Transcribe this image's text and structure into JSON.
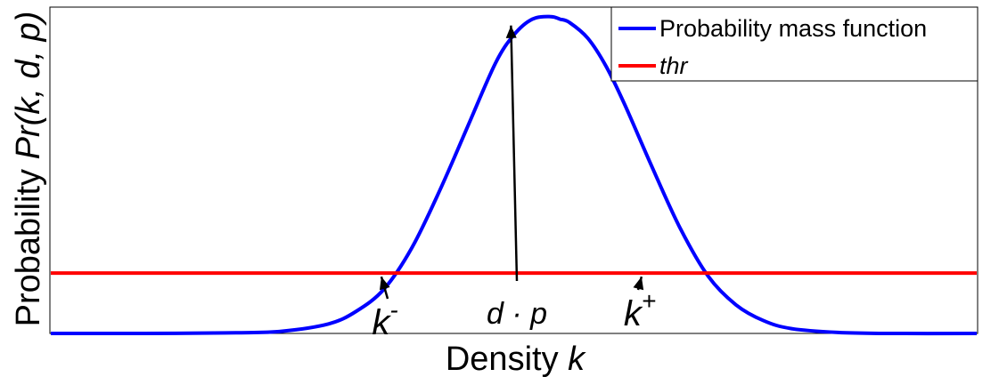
{
  "chart_data": {
    "type": "line",
    "xlabel": "Density",
    "xlabel_var": "k",
    "ylabel": "Probability",
    "ylabel_func": "Pr(k, d, p)",
    "xlim": [
      0,
      1000
    ],
    "ylim": [
      0,
      1
    ],
    "grid": false,
    "legend_position": "top-right",
    "series": [
      {
        "name": "Probability mass function",
        "color": "#0000ff",
        "x": [
          0,
          100,
          200,
          250,
          300,
          330,
          360,
          390,
          420,
          450,
          480,
          500,
          520,
          540,
          550,
          560,
          580,
          600,
          620,
          650,
          680,
          710,
          740,
          770,
          800,
          850,
          900,
          1000
        ],
        "y": [
          0.0,
          0.0,
          0.002,
          0.007,
          0.03,
          0.07,
          0.14,
          0.27,
          0.45,
          0.65,
          0.85,
          0.94,
          0.99,
          0.998,
          0.99,
          0.98,
          0.93,
          0.84,
          0.72,
          0.52,
          0.33,
          0.18,
          0.09,
          0.04,
          0.015,
          0.003,
          0.0,
          0.0
        ]
      },
      {
        "name": "thr",
        "color": "#ff0000",
        "x": [
          0,
          1000
        ],
        "y": [
          0.19,
          0.19
        ]
      }
    ],
    "annotations": [
      {
        "text": "k",
        "sup": "-",
        "x": 357,
        "y": 0.19
      },
      {
        "text": "d · p",
        "x": 543,
        "y": 0.97
      },
      {
        "text": "k",
        "sup": "+",
        "x": 638,
        "y": 0.19
      }
    ]
  }
}
